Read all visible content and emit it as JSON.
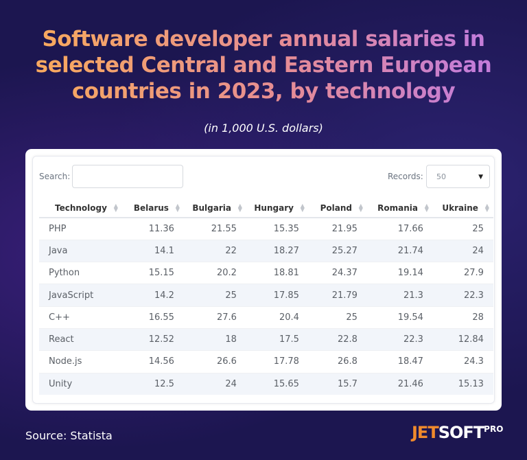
{
  "title": "Software developer annual salaries in selected Central and Eastern European countries in 2023, by technology",
  "subtitle": "(in 1,000 U.S. dollars)",
  "controls": {
    "search_label": "Search:",
    "search_value": "",
    "records_label": "Records:",
    "records_value": "50"
  },
  "colors": {
    "background": "#1c1650",
    "title_gradient_start": "#f7a860",
    "title_gradient_end": "#c47dd8",
    "logo_accent": "#f08a2c"
  },
  "icons": {
    "sort": "sort-updown-icon",
    "dropdown": "caret-down-icon"
  },
  "chart_data": {
    "type": "table",
    "columns": [
      "Technology",
      "Belarus",
      "Bulgaria",
      "Hungary",
      "Poland",
      "Romania",
      "Ukraine"
    ],
    "rows": [
      [
        "PHP",
        "11.36",
        "21.55",
        "15.35",
        "21.95",
        "17.66",
        "25"
      ],
      [
        "Java",
        "14.1",
        "22",
        "18.27",
        "25.27",
        "21.74",
        "24"
      ],
      [
        "Python",
        "15.15",
        "20.2",
        "18.81",
        "24.37",
        "19.14",
        "27.9"
      ],
      [
        "JavaScript",
        "14.2",
        "25",
        "17.85",
        "21.79",
        "21.3",
        "22.3"
      ],
      [
        "C++",
        "16.55",
        "27.6",
        "20.4",
        "25",
        "19.54",
        "28"
      ],
      [
        "React",
        "12.52",
        "18",
        "17.5",
        "22.8",
        "22.3",
        "12.84"
      ],
      [
        "Node.js",
        "14.56",
        "26.6",
        "17.78",
        "26.8",
        "18.47",
        "24.3"
      ],
      [
        "Unity",
        "12.5",
        "24",
        "15.65",
        "15.7",
        "21.46",
        "15.13"
      ]
    ]
  },
  "footer": {
    "source": "Source: Statista",
    "logo_jet": "JET",
    "logo_soft": "SOFT",
    "logo_pro": "PRO"
  }
}
